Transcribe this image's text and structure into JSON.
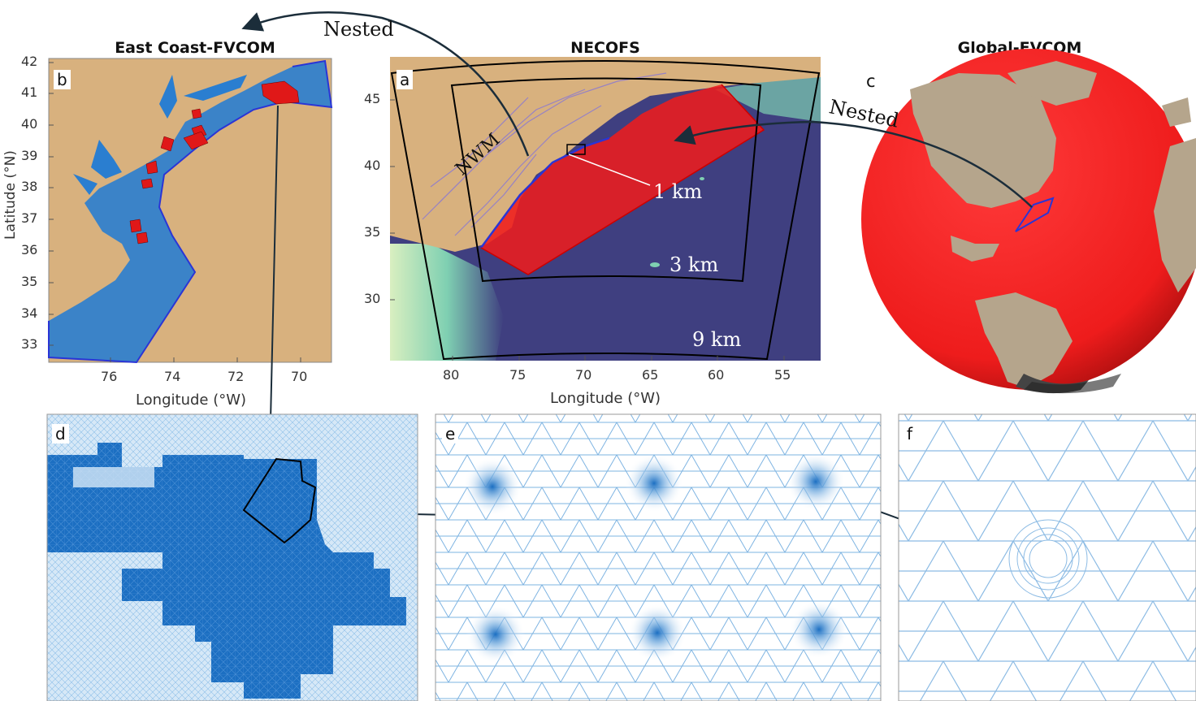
{
  "panels": {
    "b": {
      "title": "East Coast-FVCOM",
      "label": "b",
      "ylabel": "Latitude (°N)",
      "xlabel": "Longitude (°W)",
      "yticks": [
        "42",
        "41",
        "40",
        "39",
        "38",
        "37",
        "36",
        "35",
        "34",
        "33"
      ],
      "xticks": [
        "76",
        "74",
        "72",
        "70"
      ]
    },
    "a": {
      "title": "NECOFS",
      "label": "a",
      "xlabel": "Longitude (°W)",
      "yticks": [
        "45",
        "40",
        "35",
        "30"
      ],
      "xticks": [
        "80",
        "75",
        "70",
        "65",
        "60",
        "55"
      ],
      "annotations": {
        "nwm": "NWM",
        "res1": "1 km",
        "res3": "3 km",
        "res9": "9 km"
      }
    },
    "c": {
      "title": "Global-FVCOM",
      "label": "c"
    },
    "d": {
      "label": "d"
    },
    "e": {
      "label": "e"
    },
    "f": {
      "label": "f"
    }
  },
  "arrows": {
    "nested_top": "Nested",
    "nested_right": "Nested"
  },
  "colors": {
    "land": "#d8b17e",
    "ocean_deep": "#3f3f80",
    "ocean_shelf": "#9fd6b6",
    "coast_blue": "#1e74c6",
    "mesh_red": "#ee1c1c",
    "domain_blue": "#2a35d6",
    "mesh_line": "#6aa8dc",
    "globe_land": "#b5a58c"
  }
}
